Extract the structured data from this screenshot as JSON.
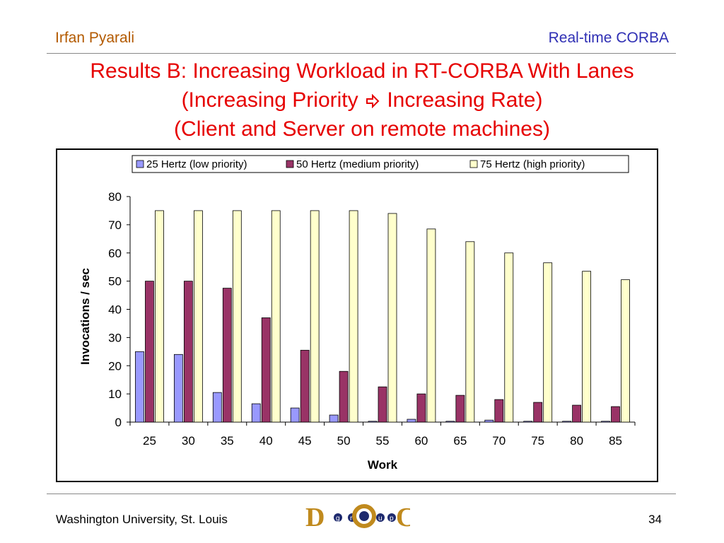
{
  "header": {
    "author": "Irfan Pyarali",
    "topic": "Real-time CORBA"
  },
  "title": {
    "line1": "Results B: Increasing Workload in RT-CORBA With Lanes",
    "line2_left": "(Increasing Priority",
    "line2_right": "Increasing Rate)",
    "line3": "(Client and Server on remote machines)",
    "arrow_icon": "hollow-right-arrow"
  },
  "footer": {
    "institution": "Washington University, St. Louis",
    "page": "34"
  },
  "logo": {
    "letters": [
      "D",
      "g",
      "r",
      "O",
      "u",
      "p",
      "C"
    ],
    "colors": [
      "#c08a1e",
      "#1e2a6e"
    ]
  },
  "chart_data": {
    "type": "bar",
    "categories": [
      "25",
      "30",
      "35",
      "40",
      "45",
      "50",
      "55",
      "60",
      "65",
      "70",
      "75",
      "80",
      "85"
    ],
    "series": [
      {
        "name": "25 Hertz (low priority)",
        "color": "#9999ff",
        "values": [
          25,
          24,
          10.5,
          6.5,
          5,
          2.5,
          0.3,
          1,
          0.3,
          0.7,
          0.3,
          0.3,
          0.3
        ]
      },
      {
        "name": "50 Hertz (medium priority)",
        "color": "#993366",
        "values": [
          50,
          50,
          47.5,
          37,
          25.5,
          18,
          12.5,
          10,
          9.5,
          8,
          7,
          6,
          5.5
        ]
      },
      {
        "name": "75 Hertz (high priority)",
        "color": "#ffffcc",
        "values": [
          75,
          75,
          75,
          75,
          75,
          75,
          74,
          68.5,
          64,
          60,
          56.5,
          53.5,
          50.5
        ]
      }
    ],
    "xlabel": "Work",
    "ylabel": "Invocations / sec",
    "ylim": [
      0,
      80
    ],
    "yticks": [
      0,
      10,
      20,
      30,
      40,
      50,
      60,
      70,
      80
    ],
    "grid": false,
    "legend": "top"
  }
}
